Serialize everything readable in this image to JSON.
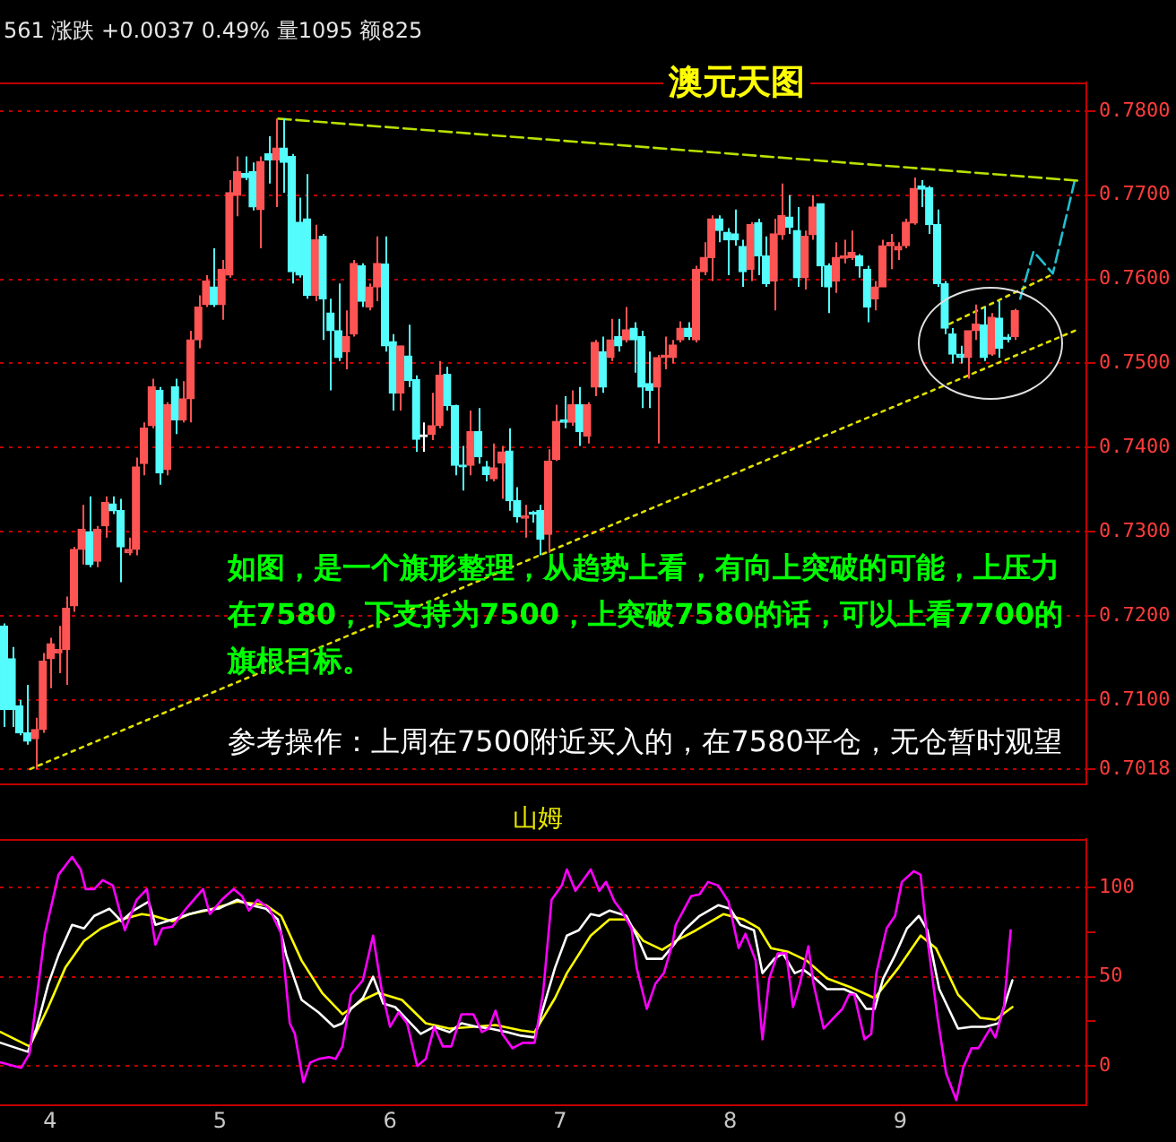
{
  "chart_data": [
    {
      "type": "candlestick",
      "title": "澳元天图",
      "annotations": [
        "561 涨跌 +0.0037 0.49% 量1095 额825",
        "如图，是一个旗形整理，从趋势上看，有向上突破的可能，上压力在7580，下支持为7500，上突破7580的话，可以上看7700的旗根目标。",
        "参考操作：上周在7500附近买入的，在7580平仓，无仓暂时观望"
      ],
      "x": [
        3.729,
        3.775,
        3.82,
        3.866,
        3.912,
        3.958,
        4.003,
        4.049,
        4.095,
        4.141,
        4.186,
        4.232,
        4.278,
        4.324,
        4.369,
        4.415,
        4.461,
        4.506,
        4.552,
        4.598,
        4.644,
        4.689,
        4.735,
        4.781,
        4.827,
        4.872,
        4.918,
        4.964,
        5.009,
        5.055,
        5.101,
        5.147,
        5.192,
        5.238,
        5.284,
        5.33,
        5.375,
        5.421,
        5.467,
        5.512,
        5.558,
        5.604,
        5.65,
        5.695,
        5.741,
        5.787,
        5.833,
        5.878,
        5.924,
        5.97,
        6.016,
        6.061,
        6.107,
        6.153,
        6.198,
        6.244,
        6.29,
        6.336,
        6.381,
        6.427,
        6.473,
        6.519,
        6.564,
        6.61,
        6.656,
        6.701,
        6.747,
        6.793,
        6.839,
        6.884,
        6.93,
        6.976,
        7.022,
        7.067,
        7.113,
        7.159,
        7.204,
        7.25,
        7.296,
        7.342,
        7.387,
        7.433,
        7.479,
        7.525,
        7.57,
        7.616,
        7.662,
        7.707,
        7.753,
        7.799,
        7.845,
        7.89,
        7.936,
        7.982,
        8.028,
        8.073,
        8.119,
        8.165,
        8.211,
        8.256,
        8.302,
        8.348,
        8.393,
        8.439,
        8.485,
        8.531,
        8.576,
        8.622,
        8.668,
        8.714,
        8.759,
        8.805,
        8.851,
        8.896,
        8.942,
        8.988,
        9.034,
        9.079,
        9.125,
        9.171,
        9.217,
        9.262,
        9.308,
        9.354,
        9.399,
        9.445,
        9.491,
        9.537,
        9.582,
        9.628,
        9.674
      ],
      "ohlc": [
        [
          0.7188,
          0.7191,
          0.7068,
          0.7089
        ],
        [
          0.7149,
          0.7163,
          0.7068,
          0.7089
        ],
        [
          0.7093,
          0.71,
          0.7058,
          0.7061
        ],
        [
          0.7061,
          0.7118,
          0.7047,
          0.7051
        ],
        [
          0.7054,
          0.7079,
          0.7018,
          0.7065
        ],
        [
          0.7065,
          0.7156,
          0.7061,
          0.7146
        ],
        [
          0.7149,
          0.7174,
          0.7114,
          0.7167
        ],
        [
          0.7156,
          0.7188,
          0.7132,
          0.716
        ],
        [
          0.716,
          0.7223,
          0.7118,
          0.7209
        ],
        [
          0.7212,
          0.7282,
          0.7205,
          0.7279
        ],
        [
          0.7279,
          0.7332,
          0.7261,
          0.7303
        ],
        [
          0.73,
          0.7342,
          0.7258,
          0.7261
        ],
        [
          0.7265,
          0.7307,
          0.7258,
          0.7303
        ],
        [
          0.7307,
          0.7342,
          0.7293,
          0.7335
        ],
        [
          0.7333,
          0.7342,
          0.7321,
          0.7325
        ],
        [
          0.7325,
          0.7339,
          0.724,
          0.7282
        ],
        [
          0.7275,
          0.7293,
          0.7272,
          0.7279
        ],
        [
          0.7279,
          0.7388,
          0.7272,
          0.7377
        ],
        [
          0.7381,
          0.743,
          0.7367,
          0.7423
        ],
        [
          0.7426,
          0.7482,
          0.7423,
          0.7472
        ],
        [
          0.7468,
          0.7472,
          0.7356,
          0.737
        ],
        [
          0.7374,
          0.7454,
          0.7367,
          0.7451
        ],
        [
          0.7472,
          0.7482,
          0.7416,
          0.7433
        ],
        [
          0.7433,
          0.7479,
          0.743,
          0.7458
        ],
        [
          0.7458,
          0.7539,
          0.743,
          0.7528
        ],
        [
          0.7528,
          0.7581,
          0.7518,
          0.7567
        ],
        [
          0.757,
          0.7605,
          0.7567,
          0.7598
        ],
        [
          0.7591,
          0.7637,
          0.7567,
          0.757
        ],
        [
          0.757,
          0.7623,
          0.7552,
          0.7612
        ],
        [
          0.7605,
          0.7718,
          0.7602,
          0.7703
        ],
        [
          0.77,
          0.7746,
          0.7675,
          0.7728
        ],
        [
          0.7726,
          0.7746,
          0.7718,
          0.7721
        ],
        [
          0.7728,
          0.7739,
          0.7682,
          0.7686
        ],
        [
          0.7683,
          0.7746,
          0.7637,
          0.774
        ],
        [
          0.7749,
          0.777,
          0.7714,
          0.7742
        ],
        [
          0.7742,
          0.7791,
          0.7686,
          0.7756
        ],
        [
          0.7756,
          0.7791,
          0.7703,
          0.7739
        ],
        [
          0.7746,
          0.7749,
          0.7595,
          0.7609
        ],
        [
          0.7668,
          0.7697,
          0.7602,
          0.7605
        ],
        [
          0.7672,
          0.7725,
          0.7577,
          0.7581
        ],
        [
          0.7581,
          0.7665,
          0.7574,
          0.7647
        ],
        [
          0.7651,
          0.7654,
          0.7528,
          0.7577
        ],
        [
          0.756,
          0.7577,
          0.7468,
          0.7539
        ],
        [
          0.7539,
          0.7595,
          0.7503,
          0.7507
        ],
        [
          0.7514,
          0.7563,
          0.7493,
          0.7532
        ],
        [
          0.7535,
          0.7623,
          0.7532,
          0.7619
        ],
        [
          0.7616,
          0.7619,
          0.7567,
          0.7574
        ],
        [
          0.7567,
          0.7595,
          0.7563,
          0.7591
        ],
        [
          0.7591,
          0.7651,
          0.7574,
          0.7619
        ],
        [
          0.7618,
          0.7651,
          0.7514,
          0.7521
        ],
        [
          0.7526,
          0.7535,
          0.7444,
          0.7465
        ],
        [
          0.7465,
          0.7521,
          0.7444,
          0.7521
        ],
        [
          0.7509,
          0.7546,
          0.7472,
          0.748
        ],
        [
          0.7481,
          0.7486,
          0.7395,
          0.741
        ],
        [
          0.7413,
          0.743,
          0.7395,
          0.7413
        ],
        [
          0.7416,
          0.7465,
          0.7409,
          0.7426
        ],
        [
          0.7426,
          0.7503,
          0.7423,
          0.7486
        ],
        [
          0.7487,
          0.7496,
          0.7444,
          0.745
        ],
        [
          0.745,
          0.7451,
          0.7367,
          0.7379
        ],
        [
          0.7379,
          0.7402,
          0.7349,
          0.7377
        ],
        [
          0.7379,
          0.7444,
          0.7367,
          0.7419
        ],
        [
          0.7419,
          0.7447,
          0.7381,
          0.7389
        ],
        [
          0.7377,
          0.7384,
          0.736,
          0.7368
        ],
        [
          0.7363,
          0.7405,
          0.736,
          0.7376
        ],
        [
          0.7382,
          0.7402,
          0.7339,
          0.7395
        ],
        [
          0.7396,
          0.7423,
          0.7325,
          0.7337
        ],
        [
          0.7337,
          0.7353,
          0.7311,
          0.7318
        ],
        [
          0.7316,
          0.7332,
          0.7293,
          0.7319
        ],
        [
          0.7322,
          0.7325,
          0.7311,
          0.7321
        ],
        [
          0.7325,
          0.7332,
          0.7272,
          0.7291
        ],
        [
          0.7297,
          0.7398,
          0.7275,
          0.7384
        ],
        [
          0.7386,
          0.7451,
          0.7384,
          0.7431
        ],
        [
          0.7433,
          0.7461,
          0.7423,
          0.743
        ],
        [
          0.743,
          0.7468,
          0.7426,
          0.7451
        ],
        [
          0.7451,
          0.7472,
          0.7402,
          0.7419
        ],
        [
          0.7414,
          0.7454,
          0.7405,
          0.7451
        ],
        [
          0.7472,
          0.7528,
          0.7461,
          0.7525
        ],
        [
          0.7514,
          0.7532,
          0.7465,
          0.7472
        ],
        [
          0.7507,
          0.7553,
          0.7503,
          0.7528
        ],
        [
          0.7532,
          0.7553,
          0.7514,
          0.7521
        ],
        [
          0.7528,
          0.7567,
          0.7525,
          0.754
        ],
        [
          0.7542,
          0.7549,
          0.7489,
          0.7528
        ],
        [
          0.7532,
          0.7539,
          0.7447,
          0.7472
        ],
        [
          0.7476,
          0.7514,
          0.7447,
          0.7468
        ],
        [
          0.7472,
          0.751,
          0.7405,
          0.7507
        ],
        [
          0.7507,
          0.7532,
          0.7493,
          0.751
        ],
        [
          0.7507,
          0.7528,
          0.75,
          0.7522
        ],
        [
          0.7528,
          0.755,
          0.7525,
          0.7542
        ],
        [
          0.7542,
          0.7549,
          0.7528,
          0.7532
        ],
        [
          0.7528,
          0.7616,
          0.7525,
          0.7612
        ],
        [
          0.7609,
          0.7644,
          0.7605,
          0.7626
        ],
        [
          0.7626,
          0.7676,
          0.7598,
          0.7672
        ],
        [
          0.7672,
          0.7676,
          0.7644,
          0.7658
        ],
        [
          0.7656,
          0.7661,
          0.7605,
          0.7647
        ],
        [
          0.7654,
          0.7683,
          0.764,
          0.7647
        ],
        [
          0.7639,
          0.7647,
          0.7591,
          0.7609
        ],
        [
          0.7612,
          0.7668,
          0.7598,
          0.7665
        ],
        [
          0.7667,
          0.7672,
          0.7605,
          0.7628
        ],
        [
          0.7628,
          0.7651,
          0.7591,
          0.7595
        ],
        [
          0.7598,
          0.7672,
          0.7563,
          0.7654
        ],
        [
          0.7653,
          0.7714,
          0.7647,
          0.7676
        ],
        [
          0.7674,
          0.77,
          0.7654,
          0.7662
        ],
        [
          0.7658,
          0.7686,
          0.7591,
          0.7602
        ],
        [
          0.7602,
          0.7658,
          0.7588,
          0.7651
        ],
        [
          0.7653,
          0.77,
          0.7647,
          0.7686
        ],
        [
          0.769,
          0.769,
          0.7591,
          0.7616
        ],
        [
          0.7616,
          0.7619,
          0.756,
          0.7591
        ],
        [
          0.7598,
          0.7644,
          0.7584,
          0.7626
        ],
        [
          0.7625,
          0.7647,
          0.7619,
          0.7628
        ],
        [
          0.7626,
          0.7658,
          0.7623,
          0.7632
        ],
        [
          0.7628,
          0.763,
          0.7602,
          0.7616
        ],
        [
          0.7612,
          0.7616,
          0.7549,
          0.7567
        ],
        [
          0.7577,
          0.7598,
          0.7563,
          0.7591
        ],
        [
          0.7591,
          0.7647,
          0.7591,
          0.764
        ],
        [
          0.764,
          0.7654,
          0.7612,
          0.7644
        ],
        [
          0.7635,
          0.7644,
          0.7623,
          0.7639
        ],
        [
          0.764,
          0.7672,
          0.7637,
          0.7668
        ],
        [
          0.7667,
          0.7721,
          0.7665,
          0.7708
        ],
        [
          0.7711,
          0.7718,
          0.7686,
          0.7707
        ],
        [
          0.7709,
          0.7711,
          0.7654,
          0.7665
        ],
        [
          0.7665,
          0.7683,
          0.7591,
          0.7595
        ],
        [
          0.7595,
          0.7598,
          0.7535,
          0.7542
        ],
        [
          0.7535,
          0.7542,
          0.75,
          0.7511
        ],
        [
          0.7511,
          0.7521,
          0.75,
          0.7507
        ],
        [
          0.7507,
          0.7539,
          0.7482,
          0.7539
        ],
        [
          0.7539,
          0.757,
          0.7528,
          0.7547
        ],
        [
          0.7546,
          0.7567,
          0.7503,
          0.7507
        ],
        [
          0.7511,
          0.756,
          0.7509,
          0.7555
        ],
        [
          0.7554,
          0.7574,
          0.7507,
          0.7518
        ],
        [
          0.753,
          0.7535,
          0.7525,
          0.7529
        ],
        [
          0.7532,
          0.7565,
          0.7528,
          0.7563
        ]
      ],
      "series": [
        {
          "type": "line",
          "x": [
            5.343,
            10.063
          ],
          "values": [
            0.7791,
            0.7717
          ],
          "color": "#b8e000",
          "line_style": "dashed"
        },
        {
          "type": "line",
          "x": [
            3.884,
            10.04
          ],
          "values": [
            0.7018,
            0.754
          ],
          "color": "#e0e000",
          "line_style": "dotted"
        },
        {
          "type": "line",
          "x": [
            9.29,
            9.907
          ],
          "values": [
            0.7547,
            0.7607
          ],
          "color": "#e0e000",
          "line_style": "dotted"
        },
        {
          "type": "line",
          "x": [
            9.706,
            9.784,
            9.898,
            10.026
          ],
          "values": [
            0.7577,
            0.7633,
            0.7607,
            0.7717
          ],
          "color": "#20c0d0",
          "line_style": "dashed"
        }
      ],
      "xlim": [
        3.706,
        10.095
      ],
      "ylim": [
        0.7,
        0.7834
      ],
      "yticks": [
        {
          "value": 0.7018,
          "label": "0.7018"
        },
        {
          "value": 0.71,
          "label": "0.7100"
        },
        {
          "value": 0.72,
          "label": "0.7200"
        },
        {
          "value": 0.73,
          "label": "0.7300"
        },
        {
          "value": 0.74,
          "label": "0.7400"
        },
        {
          "value": 0.75,
          "label": "0.7500"
        },
        {
          "value": 0.76,
          "label": "0.7600"
        },
        {
          "value": 0.77,
          "label": "0.7700"
        },
        {
          "value": 0.78,
          "label": "0.7800"
        }
      ],
      "grid": "y",
      "legend": false,
      "tick_labels": "y"
    },
    {
      "type": "line",
      "title": "山姆",
      "series": [
        {
          "color": "#ff00ff",
          "x": [
            3.71,
            3.83,
            3.88,
            3.97,
            4.05,
            4.13,
            4.18,
            4.21,
            4.26,
            4.31,
            4.37,
            4.44,
            4.51,
            4.57,
            4.62,
            4.66,
            4.72,
            4.8,
            4.9,
            4.94,
            5.01,
            5.08,
            5.13,
            5.17,
            5.22,
            5.29,
            5.36,
            5.41,
            5.44,
            5.49,
            5.53,
            5.58,
            5.64,
            5.68,
            5.72,
            5.77,
            5.84,
            5.9,
            5.95,
            6.0,
            6.05,
            6.1,
            6.16,
            6.21,
            6.26,
            6.31,
            6.36,
            6.42,
            6.49,
            6.54,
            6.58,
            6.62,
            6.66,
            6.72,
            6.78,
            6.85,
            6.9,
            6.95,
            7.01,
            7.04,
            7.09,
            7.18,
            7.23,
            7.27,
            7.32,
            7.36,
            7.42,
            7.45,
            7.51,
            7.56,
            7.61,
            7.66,
            7.68,
            7.77,
            7.82,
            7.87,
            7.93,
            7.99,
            8.05,
            8.09,
            8.15,
            8.19,
            8.23,
            8.28,
            8.33,
            8.37,
            8.41,
            8.46,
            8.49,
            8.55,
            8.6,
            8.66,
            8.7,
            8.73,
            8.79,
            8.83,
            8.86,
            8.92,
            8.97,
            9.01,
            9.08,
            9.12,
            9.16,
            9.22,
            9.27,
            9.33,
            9.37,
            9.42,
            9.46,
            9.53,
            9.56,
            9.61,
            9.65
          ],
          "values": [
            2,
            -1,
            7,
            74,
            107,
            117,
            110,
            99,
            99,
            104,
            101,
            76,
            93,
            99,
            68,
            77,
            78,
            88,
            99,
            85,
            93,
            99,
            95,
            87,
            93,
            88,
            74,
            24,
            18,
            -9,
            2,
            4,
            5,
            4,
            11,
            40,
            48,
            73,
            43,
            22,
            30,
            24,
            0,
            4,
            22,
            11,
            11,
            29,
            29,
            19,
            21,
            31,
            18,
            10,
            13,
            13,
            41,
            93,
            101,
            110,
            98,
            110,
            98,
            103,
            92,
            87,
            77,
            55,
            32,
            46,
            52,
            68,
            79,
            95,
            96,
            103,
            101,
            92,
            66,
            74,
            59,
            15,
            49,
            63,
            63,
            33,
            46,
            67,
            46,
            21,
            26,
            32,
            40,
            40,
            15,
            18,
            52,
            77,
            84,
            103,
            109,
            107,
            71,
            27,
            -4,
            -19,
            -1,
            10,
            10,
            21,
            16,
            33,
            76
          ]
        },
        {
          "color": "#ffffff",
          "x": [
            3.71,
            3.87,
            3.92,
            3.99,
            4.05,
            4.13,
            4.2,
            4.26,
            4.35,
            4.42,
            4.49,
            4.58,
            4.62,
            4.72,
            4.82,
            4.9,
            4.99,
            5.1,
            5.18,
            5.27,
            5.34,
            5.39,
            5.48,
            5.58,
            5.67,
            5.72,
            5.77,
            5.84,
            5.9,
            5.96,
            6.03,
            6.1,
            6.18,
            6.26,
            6.35,
            6.42,
            6.51,
            6.59,
            6.69,
            6.77,
            6.85,
            6.97,
            7.04,
            7.11,
            7.18,
            7.23,
            7.29,
            7.39,
            7.46,
            7.51,
            7.6,
            7.67,
            7.73,
            7.82,
            7.93,
            8.0,
            8.06,
            8.14,
            8.19,
            8.26,
            8.31,
            8.38,
            8.43,
            8.5,
            8.57,
            8.67,
            8.74,
            8.8,
            8.85,
            8.9,
            8.97,
            9.04,
            9.11,
            9.16,
            9.23,
            9.34,
            9.42,
            9.5,
            9.58,
            9.66
          ],
          "values": [
            13,
            8,
            21,
            46,
            62,
            79,
            77,
            84,
            88,
            81,
            87,
            92,
            79,
            82,
            85,
            87,
            88,
            93,
            90,
            88,
            82,
            62,
            37,
            30,
            22,
            24,
            32,
            38,
            50,
            35,
            33,
            26,
            18,
            22,
            19,
            24,
            22,
            21,
            19,
            17,
            16,
            55,
            73,
            76,
            85,
            84,
            87,
            84,
            71,
            60,
            60,
            68,
            76,
            84,
            90,
            88,
            79,
            76,
            52,
            60,
            63,
            52,
            54,
            49,
            43,
            43,
            40,
            32,
            32,
            49,
            62,
            77,
            84,
            76,
            43,
            21,
            22,
            22,
            24,
            48
          ]
        },
        {
          "color": "#ffff00",
          "x": [
            3.71,
            3.88,
            3.99,
            4.09,
            4.2,
            4.3,
            4.42,
            4.54,
            4.61,
            4.72,
            4.82,
            4.92,
            5.1,
            5.27,
            5.36,
            5.48,
            5.6,
            5.72,
            5.84,
            5.93,
            6.07,
            6.21,
            6.35,
            6.49,
            6.62,
            6.77,
            6.85,
            6.97,
            7.04,
            7.18,
            7.29,
            7.39,
            7.49,
            7.6,
            7.7,
            7.8,
            7.96,
            8.08,
            8.17,
            8.24,
            8.34,
            8.45,
            8.57,
            8.71,
            8.85,
            8.99,
            9.12,
            9.21,
            9.34,
            9.47,
            9.56,
            9.66
          ],
          "values": [
            19,
            11,
            33,
            55,
            70,
            77,
            82,
            85,
            84,
            81,
            85,
            87,
            92,
            90,
            84,
            59,
            41,
            29,
            37,
            41,
            37,
            24,
            21,
            22,
            23,
            20,
            19,
            38,
            52,
            73,
            82,
            82,
            70,
            65,
            71,
            76,
            85,
            82,
            77,
            66,
            64,
            59,
            49,
            44,
            38,
            55,
            73,
            66,
            40,
            27,
            26,
            33
          ]
        }
      ],
      "xlim": [
        3.706,
        10.095
      ],
      "xticks": [
        4,
        5,
        6,
        7,
        8,
        9
      ],
      "ylim": [
        -22,
        127
      ],
      "yticks": [
        0,
        {
          "value": 25,
          "label": null
        },
        50,
        {
          "value": 75,
          "label": null
        },
        100
      ],
      "grid": "y",
      "legend": false
    }
  ]
}
